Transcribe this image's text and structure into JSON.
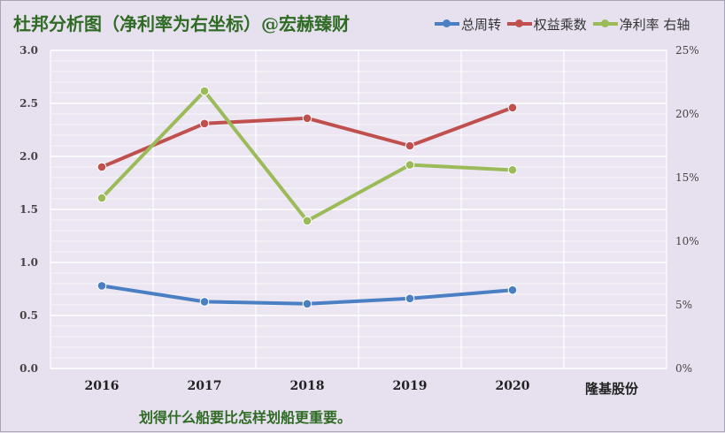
{
  "title": "杜邦分析图（净利率为右坐标）@宏赫臻财",
  "company": "隆基股份",
  "caption": "划得什么船要比怎样划船更重要。",
  "legend": [
    {
      "label": "总周转",
      "color": "#4a7fc4"
    },
    {
      "label": "权益乘数",
      "color": "#c0504d"
    },
    {
      "label": "净利率 右轴",
      "color": "#9bbb59"
    }
  ],
  "chart_data": {
    "type": "line",
    "categories": [
      "2016",
      "2017",
      "2018",
      "2019",
      "2020"
    ],
    "y_left": {
      "ylim": [
        0,
        3.0
      ],
      "ticks": [
        "0.0",
        "0.5",
        "1.0",
        "1.5",
        "2.0",
        "2.5",
        "3.0"
      ]
    },
    "y_right": {
      "ylim": [
        0,
        25
      ],
      "ticks": [
        "0%",
        "5%",
        "10%",
        "15%",
        "20%",
        "25%"
      ]
    },
    "grid": true,
    "legend_position": "top-right",
    "series": [
      {
        "name": "总周转",
        "axis": "left",
        "color": "#4a7fc4",
        "values": [
          0.78,
          0.63,
          0.61,
          0.66,
          0.74
        ]
      },
      {
        "name": "权益乘数",
        "axis": "left",
        "color": "#c0504d",
        "values": [
          1.9,
          2.31,
          2.36,
          2.1,
          2.46
        ]
      },
      {
        "name": "净利率",
        "axis": "right",
        "color": "#9bbb59",
        "values": [
          13.4,
          21.8,
          11.6,
          16.0,
          15.6
        ]
      }
    ]
  }
}
